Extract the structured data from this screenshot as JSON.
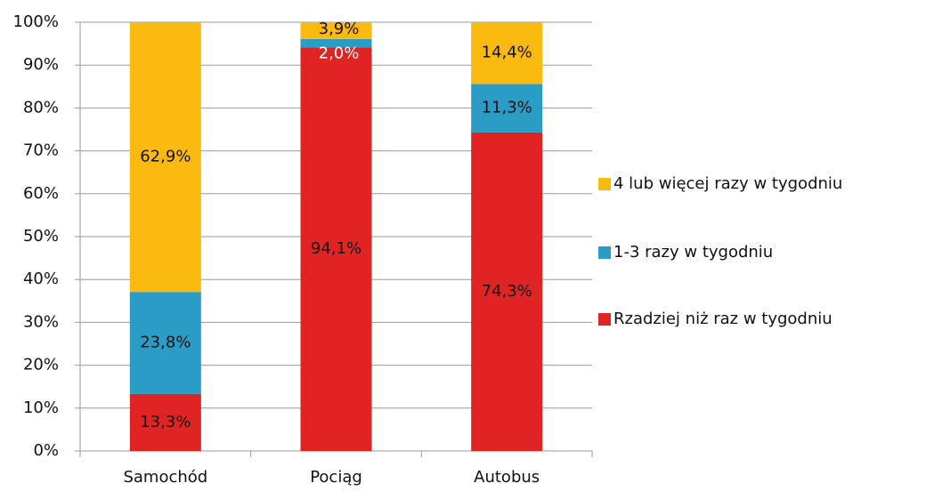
{
  "chart_data": {
    "type": "stacked_bar",
    "categories": [
      "Samochód",
      "Pociąg",
      "Autobus"
    ],
    "series": [
      {
        "name": "Rzadziej niż raz w tygodniu",
        "color": "#e02424",
        "values": [
          13.3,
          94.1,
          74.3
        ],
        "value_labels": [
          "13,3%",
          "94,1%",
          "74,3%"
        ]
      },
      {
        "name": "1-3 razy w tygodniu",
        "color": "#2b9cc6",
        "values": [
          23.8,
          2.0,
          11.3
        ],
        "value_labels": [
          "23,8%",
          "2,0%",
          "11,3%"
        ]
      },
      {
        "name": "4 lub więcej razy w tygodniu",
        "color": "#fbba10",
        "values": [
          62.9,
          3.9,
          14.4
        ],
        "value_labels": [
          "62,9%",
          "3,9%",
          "14,4%"
        ]
      }
    ],
    "ylim": [
      0,
      100
    ],
    "yticks": [
      {
        "value": 0,
        "label": "0%"
      },
      {
        "value": 10,
        "label": "10%"
      },
      {
        "value": 20,
        "label": "20%"
      },
      {
        "value": 30,
        "label": "30%"
      },
      {
        "value": 40,
        "label": "40%"
      },
      {
        "value": 50,
        "label": "50%"
      },
      {
        "value": 60,
        "label": "60%"
      },
      {
        "value": 70,
        "label": "70%"
      },
      {
        "value": 80,
        "label": "80%"
      },
      {
        "value": 90,
        "label": "90%"
      },
      {
        "value": 100,
        "label": "100%"
      }
    ],
    "grid": true,
    "legend": "right"
  }
}
